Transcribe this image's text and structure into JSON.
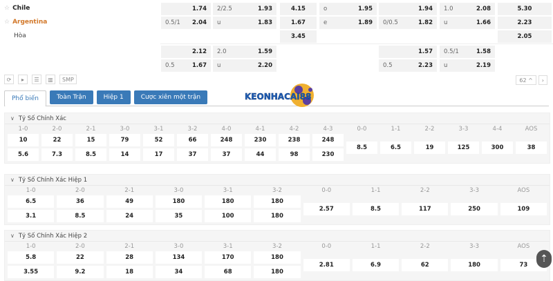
{
  "teams": [
    {
      "name": "Chile",
      "color": "#222222",
      "star": true
    },
    {
      "name": "Argentina",
      "color": "#d2782a",
      "star": true
    },
    {
      "name": "Hòa",
      "color": "#444444",
      "star": false
    }
  ],
  "odds_rows": [
    [
      [
        "",
        "1.74"
      ],
      [
        "2/2.5",
        "1.93"
      ],
      [
        "",
        "4.15"
      ],
      [
        "o",
        "1.95"
      ],
      [
        "",
        "1.94"
      ],
      [
        "1.0",
        "2.08"
      ],
      [
        "",
        "5.30"
      ]
    ],
    [
      [
        "0.5/1",
        "2.04"
      ],
      [
        "u",
        "1.83"
      ],
      [
        "",
        "1.67"
      ],
      [
        "e",
        "1.89"
      ],
      [
        "0/0.5",
        "1.82"
      ],
      [
        "u",
        "1.66"
      ],
      [
        "",
        "2.23"
      ]
    ],
    [
      null,
      null,
      [
        "",
        "3.45"
      ],
      null,
      null,
      null,
      [
        "",
        "2.05"
      ]
    ],
    [
      [
        "",
        "2.12"
      ],
      [
        "2.0",
        "1.59"
      ],
      null,
      null,
      [
        "",
        "1.57"
      ],
      [
        "0.5/1",
        "1.58"
      ],
      null
    ],
    [
      [
        "0.5",
        "1.67"
      ],
      [
        "u",
        "2.20"
      ],
      null,
      null,
      [
        "0.5",
        "2.23"
      ],
      [
        "u",
        "2.19"
      ],
      null
    ]
  ],
  "toolbar": {
    "smp": "SMP",
    "page": "62"
  },
  "tabs": [
    {
      "label": "Phổ biến",
      "active": true
    },
    {
      "label": "Toàn Trận"
    },
    {
      "label": "Hiệp 1"
    },
    {
      "label": "Cược xiên một trận"
    }
  ],
  "logo_text": "KEONHACAI88",
  "sections": [
    {
      "title": "Tỷ Số Chính Xác",
      "pairs": [
        [
          "1-0",
          "10",
          "5.6"
        ],
        [
          "2-0",
          "22",
          "7.3"
        ],
        [
          "2-1",
          "15",
          "8.5"
        ],
        [
          "3-0",
          "79",
          "14"
        ],
        [
          "3-1",
          "52",
          "17"
        ],
        [
          "3-2",
          "66",
          "37"
        ],
        [
          "4-0",
          "248",
          "37"
        ],
        [
          "4-1",
          "230",
          "44"
        ],
        [
          "4-2",
          "238",
          "98"
        ],
        [
          "4-3",
          "248",
          "230"
        ]
      ],
      "singles": [
        [
          "0-0",
          "8.5"
        ],
        [
          "1-1",
          "6.5"
        ],
        [
          "2-2",
          "19"
        ],
        [
          "3-3",
          "125"
        ],
        [
          "4-4",
          "300"
        ],
        [
          "AOS",
          "38"
        ]
      ]
    },
    {
      "title": "Tỷ Số Chính Xác Hiệp 1",
      "pairs": [
        [
          "1-0",
          "6.5",
          "3.1"
        ],
        [
          "2-0",
          "36",
          "8.5"
        ],
        [
          "2-1",
          "49",
          "24"
        ],
        [
          "3-0",
          "180",
          "35"
        ],
        [
          "3-1",
          "180",
          "100"
        ],
        [
          "3-2",
          "180",
          "180"
        ]
      ],
      "singles": [
        [
          "0-0",
          "2.57"
        ],
        [
          "1-1",
          "8.5"
        ],
        [
          "2-2",
          "117"
        ],
        [
          "3-3",
          "250"
        ],
        [
          "AOS",
          "109"
        ]
      ]
    },
    {
      "title": "Tỷ Số Chính Xác Hiệp 2",
      "pairs": [
        [
          "1-0",
          "5.8",
          "3.55"
        ],
        [
          "2-0",
          "22",
          "9.2"
        ],
        [
          "2-1",
          "28",
          "18"
        ],
        [
          "3-0",
          "134",
          "34"
        ],
        [
          "3-1",
          "170",
          "68"
        ],
        [
          "3-2",
          "180",
          "180"
        ]
      ],
      "singles": [
        [
          "0-0",
          "2.81"
        ],
        [
          "1-1",
          "6.9"
        ],
        [
          "2-2",
          "62"
        ],
        [
          "3-3",
          "180"
        ],
        [
          "AOS",
          "73"
        ]
      ]
    }
  ]
}
